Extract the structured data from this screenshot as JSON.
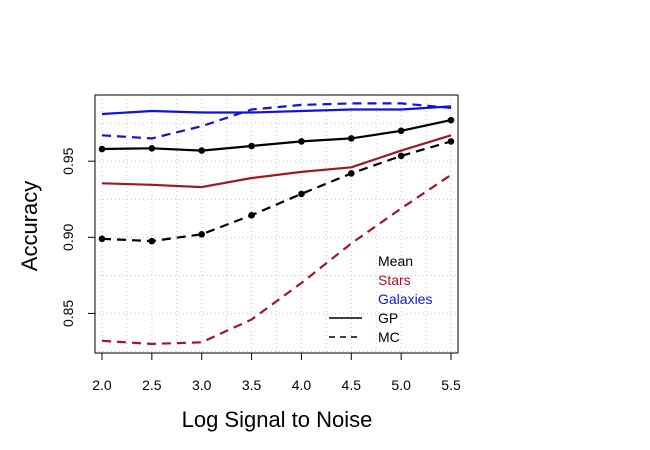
{
  "chart_data": {
    "type": "line",
    "title": "",
    "xlabel": "Log Signal to Noise",
    "ylabel": "Accuracy",
    "x": [
      2.0,
      2.5,
      3.0,
      3.5,
      4.0,
      4.5,
      5.0,
      5.5
    ],
    "x_tick_labels": [
      "2.0",
      "2.5",
      "3.0",
      "3.5",
      "4.0",
      "4.5",
      "5.0",
      "5.5"
    ],
    "y_ticks": [
      0.85,
      0.9,
      0.95
    ],
    "y_tick_labels": [
      "0.85",
      "0.90",
      "0.95"
    ],
    "xlim": [
      1.93,
      5.57
    ],
    "ylim": [
      0.824,
      0.9935
    ],
    "grid": true,
    "legend_position": "bottom-right",
    "legend": {
      "groups": [
        {
          "label": "Mean",
          "color": "#000000"
        },
        {
          "label": "Stars",
          "color": "#a31621"
        },
        {
          "label": "Galaxies",
          "color": "#1212e0"
        }
      ],
      "styles": [
        {
          "label": "GP",
          "dash": "solid"
        },
        {
          "label": "MC",
          "dash": "dashed"
        }
      ]
    },
    "series": [
      {
        "group": "Galaxies",
        "method": "GP",
        "color": "#1212e0",
        "dash": "solid",
        "markers": false,
        "values": [
          0.981,
          0.983,
          0.982,
          0.982,
          0.983,
          0.984,
          0.984,
          0.986
        ]
      },
      {
        "group": "Galaxies",
        "method": "MC",
        "color": "#1212e0",
        "dash": "dashed",
        "markers": false,
        "values": [
          0.967,
          0.965,
          0.973,
          0.984,
          0.987,
          0.988,
          0.988,
          0.985
        ]
      },
      {
        "group": "Mean",
        "method": "GP",
        "color": "#000000",
        "dash": "solid",
        "markers": true,
        "values": [
          0.958,
          0.9585,
          0.957,
          0.96,
          0.963,
          0.965,
          0.97,
          0.977
        ]
      },
      {
        "group": "Mean",
        "method": "MC",
        "color": "#000000",
        "dash": "dashed",
        "markers": true,
        "values": [
          0.899,
          0.8975,
          0.902,
          0.9145,
          0.9285,
          0.942,
          0.9535,
          0.963
        ]
      },
      {
        "group": "Stars",
        "method": "GP",
        "color": "#a31621",
        "dash": "solid",
        "markers": false,
        "values": [
          0.9355,
          0.9345,
          0.933,
          0.939,
          0.943,
          0.946,
          0.957,
          0.967
        ]
      },
      {
        "group": "Stars",
        "method": "MC",
        "color": "#a31621",
        "dash": "dashed",
        "markers": false,
        "values": [
          0.832,
          0.83,
          0.831,
          0.846,
          0.87,
          0.896,
          0.919,
          0.941
        ]
      }
    ]
  }
}
